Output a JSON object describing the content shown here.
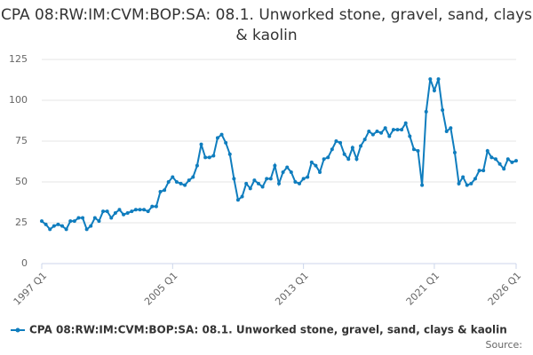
{
  "chart_data": {
    "type": "line",
    "title": "CPA 08:RW:IM:CVM:BOP:SA: 08.1. Unworked stone, gravel, sand, clays & kaolin",
    "source": "Source:",
    "categories": [
      "1997 Q1",
      null,
      null,
      null,
      null,
      null,
      null,
      null,
      null,
      null,
      null,
      null,
      null,
      null,
      null,
      null,
      null,
      null,
      null,
      null,
      null,
      null,
      null,
      null,
      null,
      null,
      null,
      null,
      null,
      null,
      null,
      null,
      "2005 Q1",
      null,
      null,
      null,
      null,
      null,
      null,
      null,
      null,
      null,
      null,
      null,
      null,
      null,
      null,
      null,
      null,
      null,
      null,
      null,
      null,
      null,
      null,
      null,
      null,
      null,
      null,
      null,
      null,
      null,
      null,
      null,
      "2013 Q1",
      null,
      null,
      null,
      null,
      null,
      null,
      null,
      null,
      null,
      null,
      null,
      null,
      null,
      null,
      null,
      null,
      null,
      null,
      null,
      null,
      null,
      null,
      null,
      null,
      null,
      null,
      null,
      null,
      null,
      null,
      null,
      "2021 Q1",
      null,
      null,
      null,
      null,
      null,
      null,
      null,
      null,
      null,
      null,
      null,
      null,
      null,
      null,
      null,
      null,
      null,
      null,
      null,
      "2026 Q1"
    ],
    "series": [
      {
        "name": "CPA 08:RW:IM:CVM:BOP:SA: 08.1. Unworked stone, gravel, sand, clays & kaolin",
        "color": "#0f7dbe",
        "values": [
          26,
          24,
          21,
          23,
          24,
          23,
          21,
          26,
          26,
          28,
          28,
          21,
          23,
          28,
          26,
          32,
          32,
          28,
          31,
          33,
          30,
          31,
          32,
          33,
          33,
          33,
          32,
          35,
          35,
          44,
          45,
          50,
          53,
          50,
          49,
          48,
          51,
          53,
          60,
          73,
          65,
          65,
          66,
          77,
          79,
          74,
          67,
          52,
          39,
          41,
          49,
          46,
          51,
          49,
          47,
          52,
          52,
          60,
          49,
          56,
          59,
          56,
          50,
          49,
          52,
          53,
          62,
          60,
          56,
          64,
          65,
          70,
          75,
          74,
          67,
          64,
          71,
          64,
          72,
          76,
          81,
          79,
          81,
          80,
          83,
          78,
          82,
          82,
          82,
          86,
          78,
          70,
          69,
          48,
          93,
          113,
          106,
          113,
          94,
          81,
          83,
          68,
          49,
          53,
          48,
          49,
          52,
          57,
          57,
          69,
          65,
          64,
          61,
          58,
          64,
          62,
          63
        ]
      }
    ],
    "ylim": [
      0,
      125
    ],
    "yticks": [
      0,
      25,
      50,
      75,
      100,
      125
    ],
    "grid": true
  }
}
